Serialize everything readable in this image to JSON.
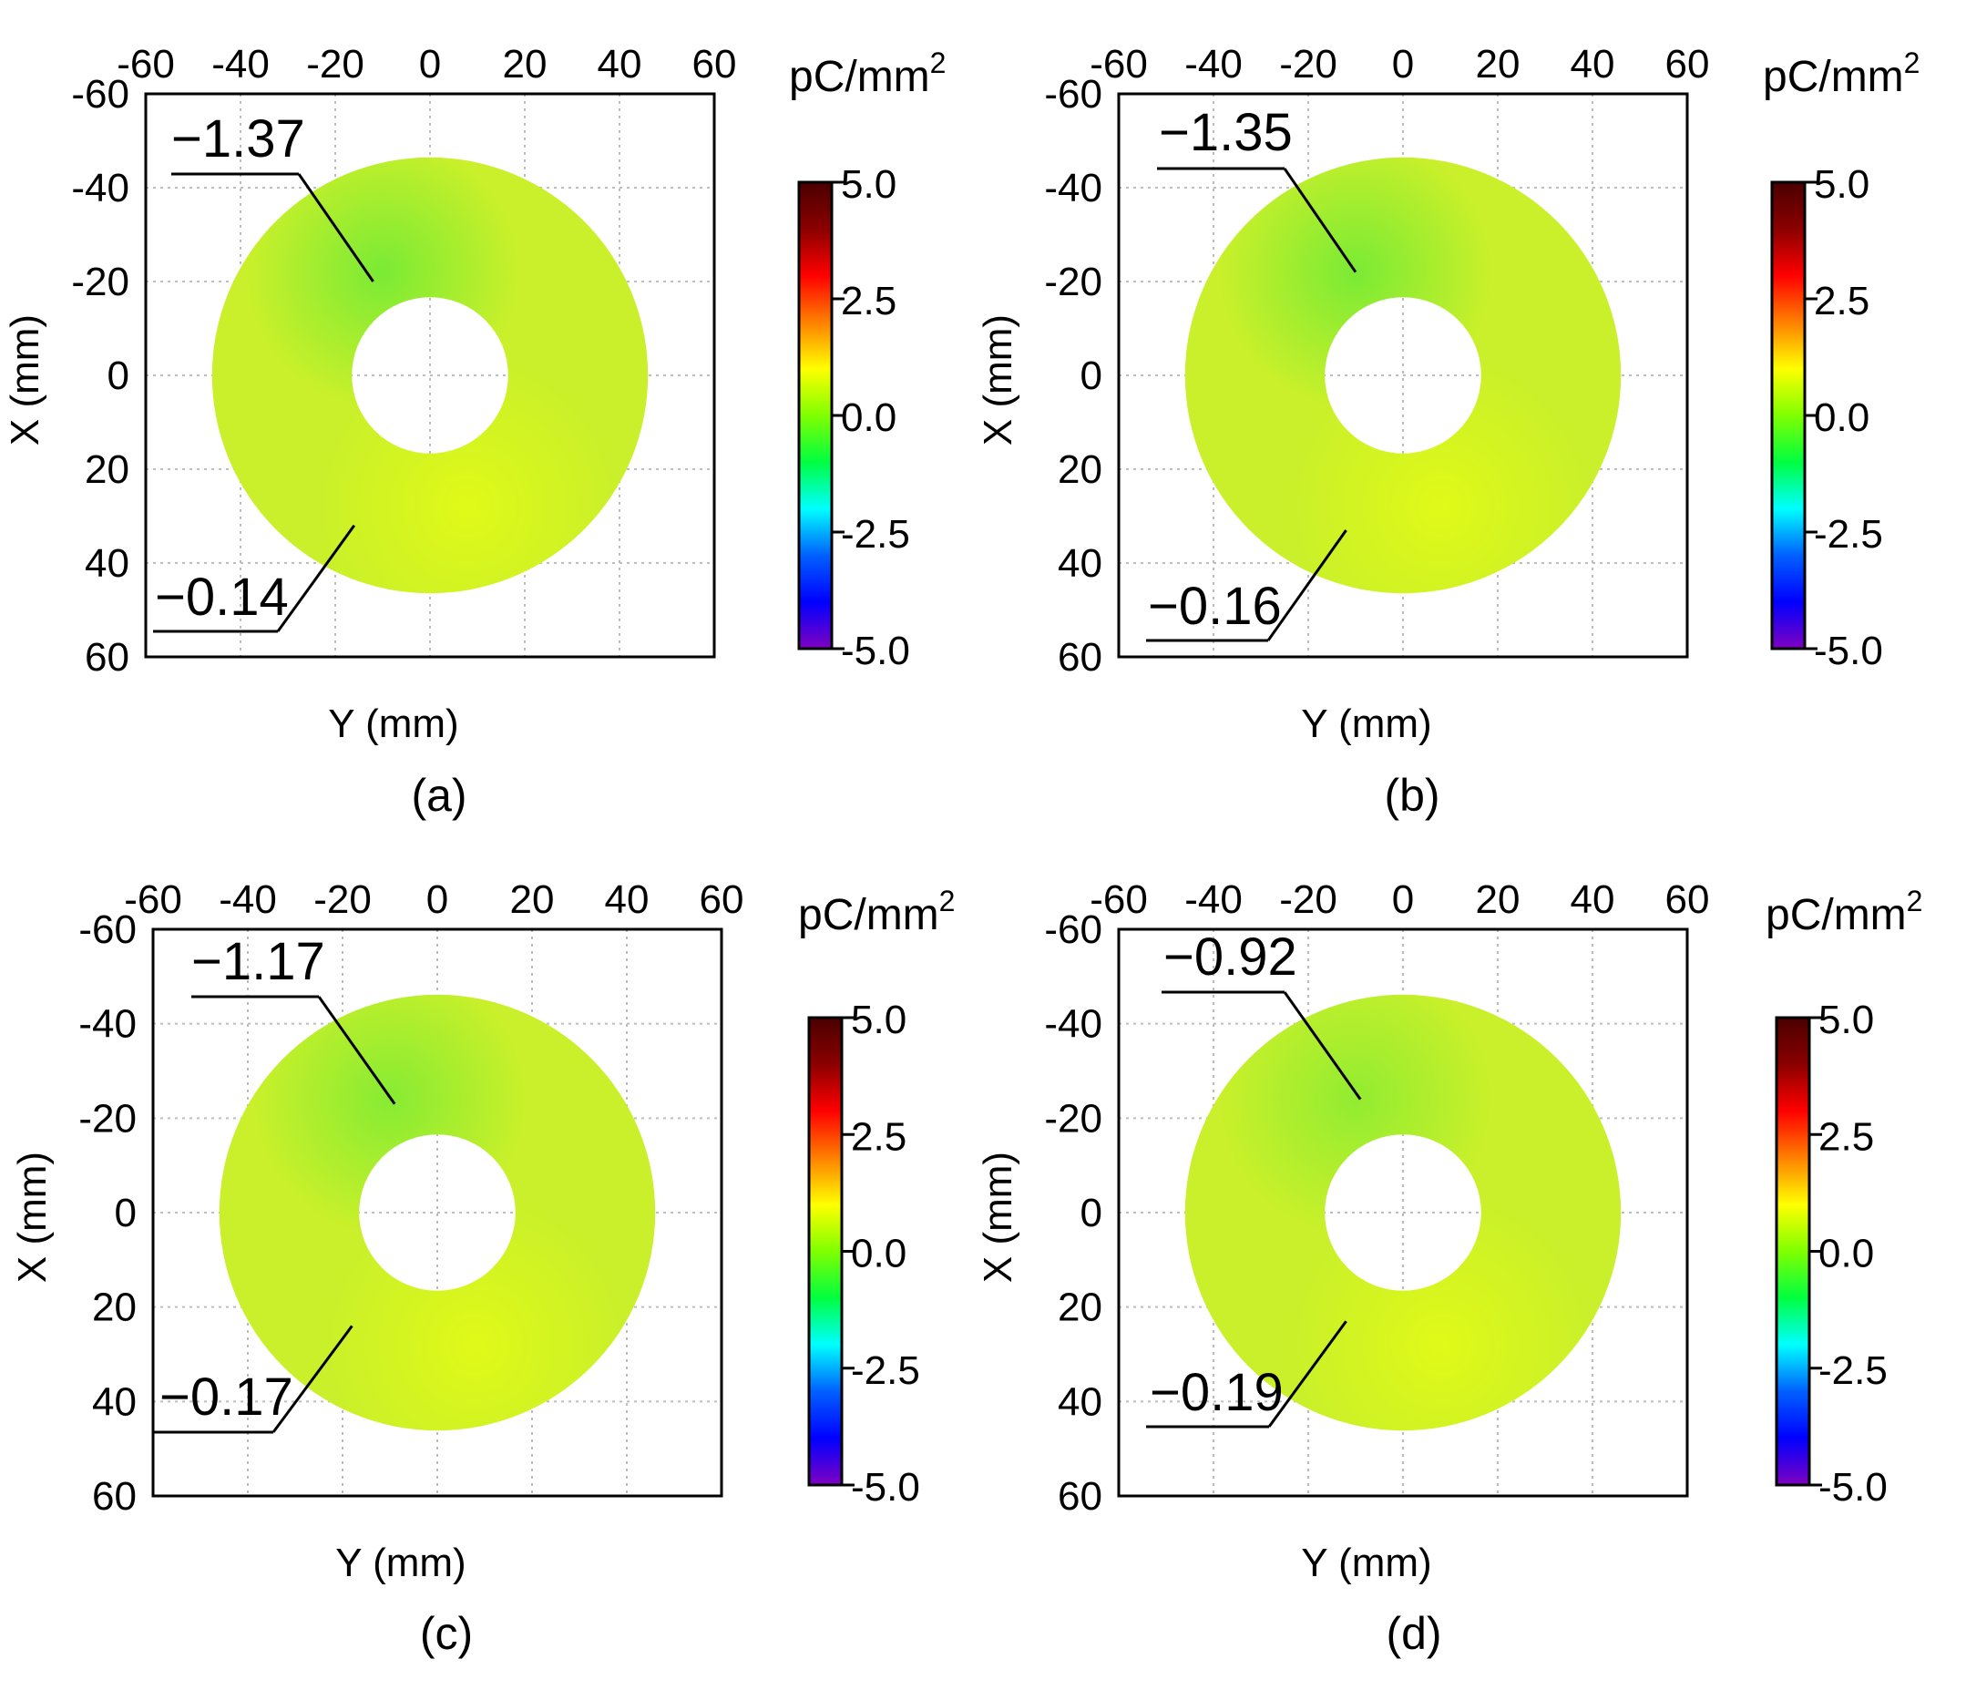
{
  "chart_data": [
    {
      "type": "heatmap",
      "panel_label": "(a)",
      "xlabel": "Y (mm)",
      "ylabel": "X (mm)",
      "x_ticks": [
        "-60",
        "-40",
        "-20",
        "0",
        "20",
        "40",
        "60"
      ],
      "y_ticks": [
        "-60",
        "-40",
        "-20",
        "0",
        "20",
        "40",
        "60"
      ],
      "xlim": [
        -60,
        60
      ],
      "ylim": [
        -60,
        60
      ],
      "y_inverted": true,
      "ring": {
        "inner_radius_mm": 16.5,
        "outer_radius_mm": 46
      },
      "colorbar": {
        "unit": "pC/mm",
        "unit_sup": "2",
        "range": [
          -5.0,
          5.0
        ],
        "ticks": [
          "5.0",
          "2.5",
          "0.0",
          "-2.5",
          "-5.0"
        ]
      },
      "annotations": [
        {
          "text": "−1.37",
          "value": -1.37,
          "kind": "min",
          "point": {
            "y": -12,
            "x": -20
          }
        },
        {
          "text": "−0.14",
          "value": -0.14,
          "kind": "max",
          "point": {
            "y": -16,
            "x": 32
          }
        }
      ],
      "hotspot": {
        "y": -10,
        "x": -22,
        "value": -1.3
      }
    },
    {
      "type": "heatmap",
      "panel_label": "(b)",
      "xlabel": "Y (mm)",
      "ylabel": "X (mm)",
      "x_ticks": [
        "-60",
        "-40",
        "-20",
        "0",
        "20",
        "40",
        "60"
      ],
      "y_ticks": [
        "-60",
        "-40",
        "-20",
        "0",
        "20",
        "40",
        "60"
      ],
      "xlim": [
        -60,
        60
      ],
      "ylim": [
        -60,
        60
      ],
      "y_inverted": true,
      "ring": {
        "inner_radius_mm": 16.5,
        "outer_radius_mm": 46
      },
      "colorbar": {
        "unit": "pC/mm",
        "unit_sup": "2",
        "range": [
          -5.0,
          5.0
        ],
        "ticks": [
          "5.0",
          "2.5",
          "0.0",
          "-2.5",
          "-5.0"
        ]
      },
      "annotations": [
        {
          "text": "−1.35",
          "value": -1.35,
          "kind": "min",
          "point": {
            "y": -10,
            "x": -22
          }
        },
        {
          "text": "−0.16",
          "value": -0.16,
          "kind": "max",
          "point": {
            "y": -12,
            "x": 33
          }
        }
      ],
      "hotspot": {
        "y": -10,
        "x": -22,
        "value": -1.3
      }
    },
    {
      "type": "heatmap",
      "panel_label": "(c)",
      "xlabel": "Y (mm)",
      "ylabel": "X (mm)",
      "x_ticks": [
        "-60",
        "-40",
        "-20",
        "0",
        "20",
        "40",
        "60"
      ],
      "y_ticks": [
        "-60",
        "-40",
        "-20",
        "0",
        "20",
        "40",
        "60"
      ],
      "xlim": [
        -60,
        60
      ],
      "ylim": [
        -60,
        60
      ],
      "y_inverted": true,
      "ring": {
        "inner_radius_mm": 16.5,
        "outer_radius_mm": 46
      },
      "colorbar": {
        "unit": "pC/mm",
        "unit_sup": "2",
        "range": [
          -5.0,
          5.0
        ],
        "ticks": [
          "5.0",
          "2.5",
          "0.0",
          "-2.5",
          "-5.0"
        ]
      },
      "annotations": [
        {
          "text": "−1.17",
          "value": -1.17,
          "kind": "min",
          "point": {
            "y": -9,
            "x": -23
          }
        },
        {
          "text": "−0.17",
          "value": -0.17,
          "kind": "max",
          "point": {
            "y": -18,
            "x": 24
          }
        }
      ],
      "hotspot": {
        "y": -10,
        "x": -24,
        "value": -1.1
      }
    },
    {
      "type": "heatmap",
      "panel_label": "(d)",
      "xlabel": "Y (mm)",
      "ylabel": "X (mm)",
      "x_ticks": [
        "-60",
        "-40",
        "-20",
        "0",
        "20",
        "40",
        "60"
      ],
      "y_ticks": [
        "-60",
        "-40",
        "-20",
        "0",
        "20",
        "40",
        "60"
      ],
      "xlim": [
        -60,
        60
      ],
      "ylim": [
        -60,
        60
      ],
      "y_inverted": true,
      "ring": {
        "inner_radius_mm": 16.5,
        "outer_radius_mm": 46
      },
      "colorbar": {
        "unit": "pC/mm",
        "unit_sup": "2",
        "range": [
          -5.0,
          5.0
        ],
        "ticks": [
          "5.0",
          "2.5",
          "0.0",
          "-2.5",
          "-5.0"
        ]
      },
      "annotations": [
        {
          "text": "−0.92",
          "value": -0.92,
          "kind": "min",
          "point": {
            "y": -9,
            "x": -24
          }
        },
        {
          "text": "−0.19",
          "value": -0.19,
          "kind": "max",
          "point": {
            "y": -12,
            "x": 23
          }
        }
      ],
      "hotspot": {
        "y": -10,
        "x": -24,
        "value": -0.9
      }
    }
  ],
  "colors": {
    "base": "#c9f02a",
    "bright": "#e4fb15",
    "hot": "#76ea35",
    "axis": "#000000",
    "colorbar_stops": [
      "#4a0000",
      "#8b0000",
      "#ff0000",
      "#ff8000",
      "#ffff00",
      "#80ff00",
      "#00ff40",
      "#00ffff",
      "#0060ff",
      "#0000ff",
      "#8000c0"
    ]
  }
}
